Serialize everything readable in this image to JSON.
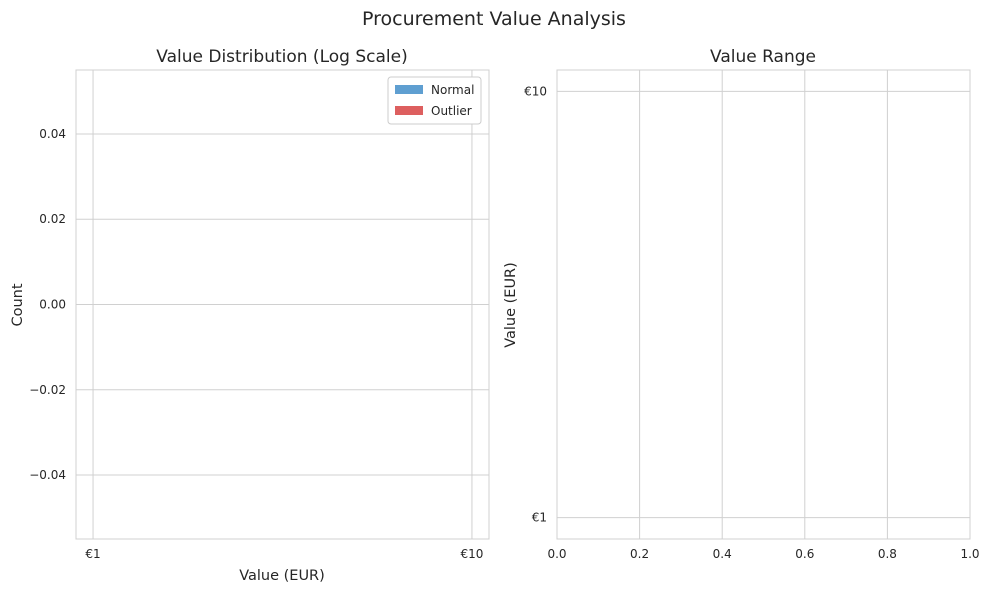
{
  "figure": {
    "title": "Procurement Value Analysis"
  },
  "chart_data": [
    {
      "type": "bar",
      "title": "Value Distribution (Log Scale)",
      "xlabel": "Value (EUR)",
      "ylabel": "Count",
      "x_scale": "log",
      "xlim": [
        1,
        10
      ],
      "ylim": [
        -0.055,
        0.055
      ],
      "x_ticks": [
        1,
        10
      ],
      "x_tick_labels": [
        "€1",
        "€10"
      ],
      "y_ticks": [
        0.04,
        0.02,
        0.0,
        -0.02,
        -0.04
      ],
      "y_tick_labels": [
        "0.04",
        "0.02",
        "0.00",
        "−0.02",
        "−0.04"
      ],
      "grid": true,
      "legend_position": "top-right",
      "series": [
        {
          "name": "Normal",
          "color": "#5f9fd1",
          "values": []
        },
        {
          "name": "Outlier",
          "color": "#dd5f5f",
          "values": []
        }
      ]
    },
    {
      "type": "scatter",
      "title": "Value Range",
      "xlabel": "",
      "ylabel": "Value (EUR)",
      "y_scale": "log",
      "xlim": [
        0,
        1
      ],
      "ylim": [
        1,
        10
      ],
      "x_ticks": [
        0.0,
        0.2,
        0.4,
        0.6,
        0.8,
        1.0
      ],
      "x_tick_labels": [
        "0.0",
        "0.2",
        "0.4",
        "0.6",
        "0.8",
        "1.0"
      ],
      "y_ticks": [
        10,
        1
      ],
      "y_tick_labels": [
        "€10",
        "€1"
      ],
      "grid": true,
      "series": []
    }
  ]
}
